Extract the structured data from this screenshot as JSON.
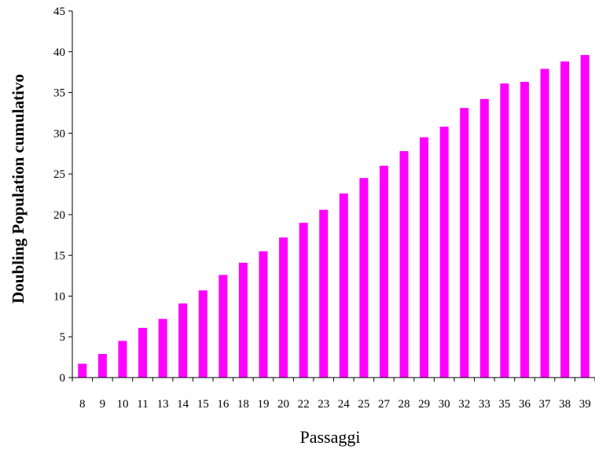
{
  "chart_data": {
    "type": "bar",
    "title": "",
    "xlabel": "Passaggi",
    "ylabel": "Doubling Population cumulativo",
    "categories": [
      "8",
      "9",
      "10",
      "11",
      "13",
      "14",
      "15",
      "16",
      "18",
      "19",
      "20",
      "22",
      "23",
      "24",
      "25",
      "27",
      "28",
      "29",
      "30",
      "32",
      "33",
      "35",
      "36",
      "37",
      "38",
      "39"
    ],
    "values": [
      1.7,
      2.9,
      4.5,
      6.1,
      7.2,
      9.1,
      10.7,
      12.6,
      14.1,
      15.5,
      17.2,
      19.0,
      20.6,
      22.6,
      24.5,
      26.0,
      27.8,
      29.5,
      30.8,
      33.1,
      34.2,
      36.1,
      36.3,
      37.9,
      38.8,
      39.6
    ],
    "ylim": [
      0,
      45
    ],
    "yticks": [
      0,
      5,
      10,
      15,
      20,
      25,
      30,
      35,
      40,
      45
    ],
    "bar_color": "#ff00ff",
    "grid": false,
    "legend": "none"
  }
}
